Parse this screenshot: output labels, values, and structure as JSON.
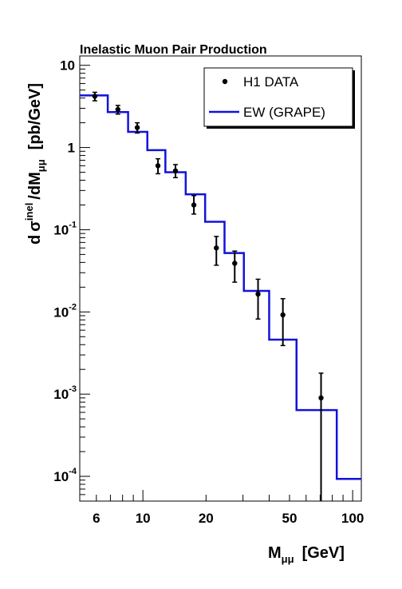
{
  "chart_data": {
    "type": "scatter",
    "title": "Inelastic Muon Pair Production",
    "xlabel": {
      "main": "M",
      "sub": "μμ",
      "unit": "[GeV]"
    },
    "ylabel": {
      "d": "d",
      "sigma": "σ",
      "sup": "inel",
      "mid": "/dM",
      "sub": "μμ",
      "unit": "[pb/GeV]"
    },
    "x_scale": "log",
    "y_scale": "log",
    "xlim": [
      5,
      110
    ],
    "ylim": [
      5e-05,
      13
    ],
    "x_tick_labels": [
      {
        "value": 6,
        "label": "6"
      },
      {
        "value": 10,
        "label": "10"
      },
      {
        "value": 20,
        "label": "20"
      },
      {
        "value": 50,
        "label": "50"
      },
      {
        "value": 100,
        "label": "100"
      }
    ],
    "y_tick_labels": [
      {
        "value": 10,
        "base": "10",
        "exp": ""
      },
      {
        "value": 1,
        "base": "1",
        "exp": ""
      },
      {
        "value": 0.1,
        "base": "10",
        "exp": "-1"
      },
      {
        "value": 0.01,
        "base": "10",
        "exp": "-2"
      },
      {
        "value": 0.001,
        "base": "10",
        "exp": "-3"
      },
      {
        "value": 0.0001,
        "base": "10",
        "exp": "-4"
      }
    ],
    "legend_position": "top-right",
    "series": [
      {
        "name": "H1 DATA",
        "kind": "points",
        "color": "#000000",
        "points": [
          {
            "x": 5.9,
            "y": 4.2,
            "y_lo": 3.7,
            "y_hi": 4.7
          },
          {
            "x": 7.6,
            "y": 2.9,
            "y_lo": 2.55,
            "y_hi": 3.25
          },
          {
            "x": 9.4,
            "y": 1.75,
            "y_lo": 1.5,
            "y_hi": 2.0
          },
          {
            "x": 11.8,
            "y": 0.6,
            "y_lo": 0.48,
            "y_hi": 0.73
          },
          {
            "x": 14.3,
            "y": 0.52,
            "y_lo": 0.43,
            "y_hi": 0.62
          },
          {
            "x": 17.5,
            "y": 0.2,
            "y_lo": 0.155,
            "y_hi": 0.26
          },
          {
            "x": 22.4,
            "y": 0.06,
            "y_lo": 0.037,
            "y_hi": 0.083
          },
          {
            "x": 27.4,
            "y": 0.039,
            "y_lo": 0.023,
            "y_hi": 0.055
          },
          {
            "x": 35.4,
            "y": 0.0165,
            "y_lo": 0.0082,
            "y_hi": 0.025
          },
          {
            "x": 46.5,
            "y": 0.0092,
            "y_lo": 0.0039,
            "y_hi": 0.0145
          },
          {
            "x": 70.7,
            "y": 0.0009,
            "y_lo": 5e-05,
            "y_hi": 0.0018
          }
        ]
      },
      {
        "name": "EW (GRAPE)",
        "kind": "histogram",
        "color": "#1212dd",
        "bins": [
          {
            "x_lo": 5,
            "x_hi": 6.8,
            "y": 4.3
          },
          {
            "x_lo": 6.8,
            "x_hi": 8.5,
            "y": 2.7
          },
          {
            "x_lo": 8.5,
            "x_hi": 10.5,
            "y": 1.55
          },
          {
            "x_lo": 10.5,
            "x_hi": 12.8,
            "y": 0.93
          },
          {
            "x_lo": 12.8,
            "x_hi": 16,
            "y": 0.5
          },
          {
            "x_lo": 16,
            "x_hi": 19.8,
            "y": 0.27
          },
          {
            "x_lo": 19.8,
            "x_hi": 24.5,
            "y": 0.125
          },
          {
            "x_lo": 24.5,
            "x_hi": 30.3,
            "y": 0.052
          },
          {
            "x_lo": 30.3,
            "x_hi": 40,
            "y": 0.018
          },
          {
            "x_lo": 40,
            "x_hi": 54,
            "y": 0.0046
          },
          {
            "x_lo": 54,
            "x_hi": 84,
            "y": 0.00064
          },
          {
            "x_lo": 84,
            "x_hi": 110,
            "y": 9.3e-05
          }
        ]
      }
    ]
  }
}
